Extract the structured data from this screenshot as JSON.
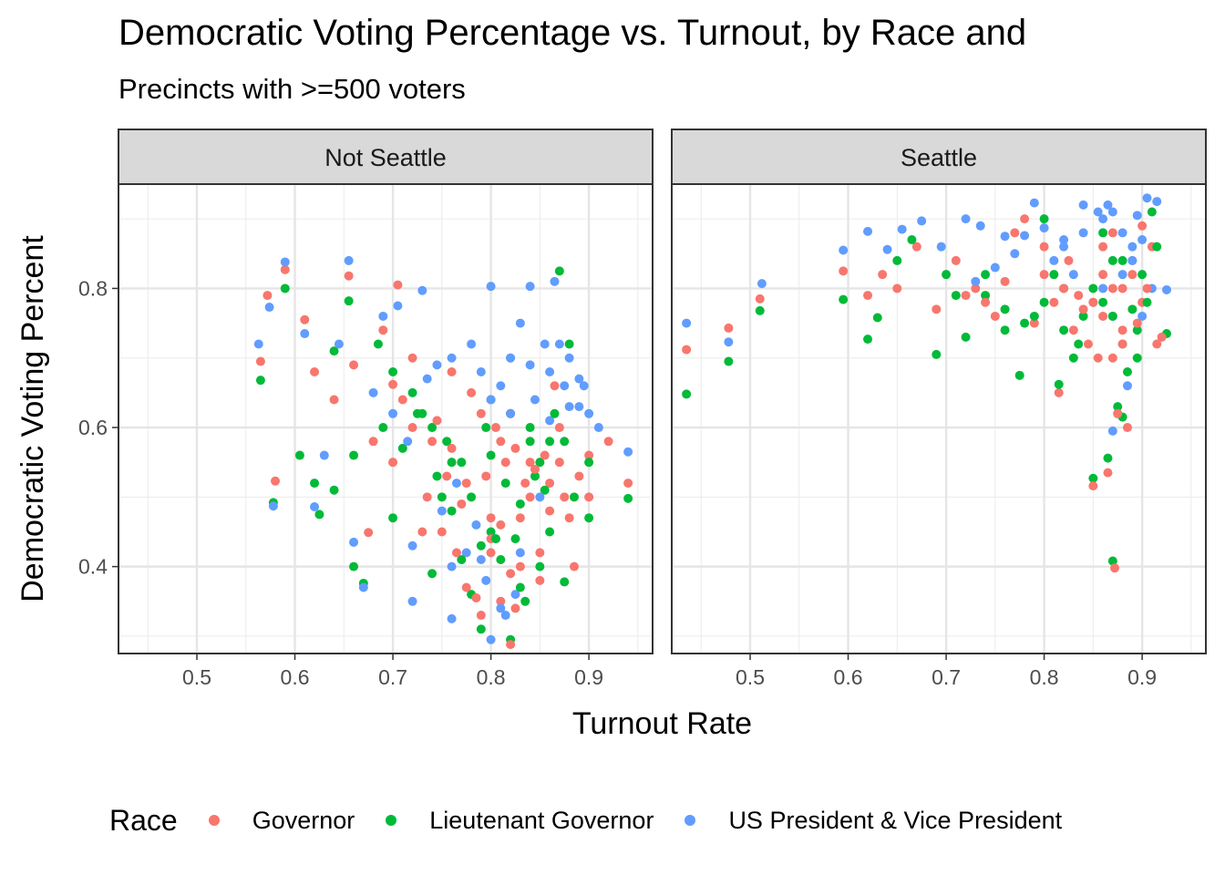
{
  "chart_data": {
    "type": "scatter",
    "title": "Democratic Voting Percentage vs. Turnout, by Race and",
    "subtitle": "Precincts with >=500 voters",
    "xlabel": "Turnout Rate",
    "ylabel": "Democratic Voting Percent",
    "xlim": [
      0.42,
      0.965
    ],
    "ylim": [
      0.275,
      0.95
    ],
    "x_ticks": [
      0.5,
      0.6,
      0.7,
      0.8,
      0.9
    ],
    "x_tick_labels": [
      "0.5",
      "0.6",
      "0.7",
      "0.8",
      "0.9"
    ],
    "y_ticks": [
      0.4,
      0.6,
      0.8
    ],
    "y_tick_labels": [
      "0.4",
      "0.6",
      "0.8"
    ],
    "grid": true,
    "legend_title": "Race",
    "legend_position": "bottom",
    "colors": {
      "Governor": "#F8766D",
      "Lieutenant Governor": "#00BA38",
      "US President & Vice President": "#619CFF"
    },
    "facets": [
      {
        "label": "Not Seattle",
        "series": [
          {
            "name": "Governor",
            "x": [
              0.565,
              0.572,
              0.58,
              0.59,
              0.61,
              0.62,
              0.64,
              0.655,
              0.66,
              0.675,
              0.69,
              0.7,
              0.705,
              0.72,
              0.74,
              0.755,
              0.77,
              0.785,
              0.79,
              0.8,
              0.81,
              0.82,
              0.83,
              0.84,
              0.85,
              0.86,
              0.87,
              0.885,
              0.9,
              0.92,
              0.94,
              0.72,
              0.76,
              0.78,
              0.79,
              0.81,
              0.82,
              0.84,
              0.86,
              0.88,
              0.75,
              0.8,
              0.83,
              0.85,
              0.87,
              0.9,
              0.7,
              0.735,
              0.76,
              0.775,
              0.805,
              0.815,
              0.835,
              0.855,
              0.875,
              0.71,
              0.745,
              0.795,
              0.825,
              0.845,
              0.865,
              0.89,
              0.68,
              0.73,
              0.765,
              0.8,
              0.82,
              0.775,
              0.81,
              0.825
            ],
            "y": [
              0.695,
              0.79,
              0.523,
              0.827,
              0.755,
              0.68,
              0.64,
              0.818,
              0.69,
              0.449,
              0.74,
              0.662,
              0.805,
              0.6,
              0.58,
              0.53,
              0.49,
              0.355,
              0.33,
              0.42,
              0.35,
              0.288,
              0.47,
              0.55,
              0.42,
              0.52,
              0.55,
              0.4,
              0.56,
              0.58,
              0.52,
              0.7,
              0.68,
              0.65,
              0.62,
              0.58,
              0.62,
              0.5,
              0.48,
              0.47,
              0.45,
              0.44,
              0.4,
              0.38,
              0.6,
              0.5,
              0.55,
              0.5,
              0.57,
              0.52,
              0.6,
              0.55,
              0.52,
              0.56,
              0.5,
              0.64,
              0.61,
              0.53,
              0.57,
              0.54,
              0.66,
              0.53,
              0.58,
              0.45,
              0.42,
              0.47,
              0.39,
              0.37,
              0.46,
              0.34
            ]
          },
          {
            "name": "Lieutenant Governor",
            "x": [
              0.565,
              0.578,
              0.59,
              0.605,
              0.62,
              0.625,
              0.64,
              0.655,
              0.66,
              0.67,
              0.685,
              0.7,
              0.72,
              0.74,
              0.76,
              0.78,
              0.79,
              0.8,
              0.82,
              0.835,
              0.85,
              0.87,
              0.875,
              0.9,
              0.94,
              0.73,
              0.755,
              0.78,
              0.8,
              0.82,
              0.84,
              0.86,
              0.88,
              0.9,
              0.71,
              0.745,
              0.77,
              0.795,
              0.815,
              0.83,
              0.855,
              0.875,
              0.69,
              0.725,
              0.76,
              0.8,
              0.825,
              0.845,
              0.865,
              0.885,
              0.7,
              0.75,
              0.79,
              0.81,
              0.84,
              0.86,
              0.74,
              0.77,
              0.805,
              0.83,
              0.85,
              0.64,
              0.66
            ],
            "y": [
              0.668,
              0.492,
              0.8,
              0.56,
              0.52,
              0.475,
              0.71,
              0.782,
              0.4,
              0.376,
              0.72,
              0.68,
              0.65,
              0.6,
              0.55,
              0.36,
              0.31,
              0.45,
              0.295,
              0.35,
              0.55,
              0.825,
              0.378,
              0.47,
              0.498,
              0.62,
              0.58,
              0.5,
              0.64,
              0.62,
              0.6,
              0.58,
              0.72,
              0.55,
              0.57,
              0.53,
              0.55,
              0.6,
              0.52,
              0.49,
              0.51,
              0.58,
              0.6,
              0.62,
              0.48,
              0.56,
              0.44,
              0.53,
              0.62,
              0.5,
              0.47,
              0.5,
              0.43,
              0.41,
              0.58,
              0.45,
              0.39,
              0.41,
              0.44,
              0.37,
              0.4,
              0.51,
              0.56
            ]
          },
          {
            "name": "US President & Vice President",
            "x": [
              0.563,
              0.574,
              0.578,
              0.59,
              0.61,
              0.62,
              0.63,
              0.645,
              0.655,
              0.66,
              0.67,
              0.69,
              0.705,
              0.72,
              0.73,
              0.745,
              0.76,
              0.775,
              0.8,
              0.82,
              0.83,
              0.84,
              0.855,
              0.865,
              0.88,
              0.895,
              0.91,
              0.94,
              0.735,
              0.76,
              0.78,
              0.79,
              0.81,
              0.82,
              0.84,
              0.86,
              0.87,
              0.88,
              0.89,
              0.8,
              0.82,
              0.845,
              0.86,
              0.875,
              0.89,
              0.9,
              0.75,
              0.765,
              0.785,
              0.805,
              0.83,
              0.85,
              0.68,
              0.7,
              0.715,
              0.795,
              0.81,
              0.825,
              0.72,
              0.76,
              0.79,
              0.8,
              0.815
            ],
            "y": [
              0.72,
              0.773,
              0.487,
              0.838,
              0.735,
              0.486,
              0.56,
              0.72,
              0.84,
              0.435,
              0.37,
              0.76,
              0.775,
              0.35,
              0.797,
              0.69,
              0.325,
              0.42,
              0.803,
              0.7,
              0.75,
              0.803,
              0.72,
              0.81,
              0.63,
              0.66,
              0.6,
              0.565,
              0.67,
              0.7,
              0.72,
              0.68,
              0.66,
              0.7,
              0.69,
              0.68,
              0.72,
              0.7,
              0.67,
              0.64,
              0.62,
              0.64,
              0.61,
              0.66,
              0.63,
              0.62,
              0.48,
              0.52,
              0.46,
              0.44,
              0.42,
              0.5,
              0.65,
              0.62,
              0.58,
              0.38,
              0.34,
              0.36,
              0.43,
              0.4,
              0.41,
              0.295,
              0.33
            ]
          }
        ]
      },
      {
        "label": "Seattle",
        "series": [
          {
            "name": "Governor",
            "x": [
              0.435,
              0.478,
              0.51,
              0.595,
              0.62,
              0.635,
              0.65,
              0.67,
              0.69,
              0.71,
              0.73,
              0.75,
              0.77,
              0.78,
              0.79,
              0.8,
              0.815,
              0.825,
              0.835,
              0.845,
              0.85,
              0.855,
              0.86,
              0.865,
              0.87,
              0.872,
              0.875,
              0.88,
              0.885,
              0.89,
              0.9,
              0.91,
              0.92,
              0.86,
              0.87,
              0.88,
              0.89,
              0.9,
              0.84,
              0.8,
              0.81,
              0.82,
              0.83,
              0.85,
              0.86,
              0.87,
              0.88,
              0.895,
              0.905,
              0.915,
              0.76,
              0.72,
              0.74
            ],
            "y": [
              0.712,
              0.743,
              0.785,
              0.825,
              0.79,
              0.82,
              0.8,
              0.86,
              0.77,
              0.84,
              0.8,
              0.76,
              0.88,
              0.9,
              0.75,
              0.86,
              0.65,
              0.84,
              0.79,
              0.72,
              0.516,
              0.7,
              0.82,
              0.535,
              0.88,
              0.398,
              0.62,
              0.74,
              0.6,
              0.82,
              0.78,
              0.86,
              0.73,
              0.76,
              0.7,
              0.8,
              0.84,
              0.89,
              0.77,
              0.82,
              0.78,
              0.8,
              0.74,
              0.78,
              0.86,
              0.8,
              0.72,
              0.75,
              0.8,
              0.72,
              0.81,
              0.79,
              0.78
            ]
          },
          {
            "name": "Lieutenant Governor",
            "x": [
              0.435,
              0.478,
              0.51,
              0.595,
              0.62,
              0.63,
              0.65,
              0.665,
              0.69,
              0.7,
              0.72,
              0.74,
              0.76,
              0.775,
              0.79,
              0.8,
              0.815,
              0.82,
              0.835,
              0.85,
              0.865,
              0.87,
              0.875,
              0.88,
              0.885,
              0.895,
              0.91,
              0.925,
              0.86,
              0.87,
              0.88,
              0.89,
              0.9,
              0.84,
              0.8,
              0.81,
              0.82,
              0.83,
              0.85,
              0.86,
              0.87,
              0.88,
              0.895,
              0.905,
              0.915,
              0.76,
              0.74,
              0.71,
              0.78
            ],
            "y": [
              0.648,
              0.695,
              0.768,
              0.784,
              0.727,
              0.758,
              0.84,
              0.87,
              0.705,
              0.82,
              0.73,
              0.79,
              0.77,
              0.675,
              0.76,
              0.9,
              0.662,
              0.8,
              0.72,
              0.527,
              0.556,
              0.408,
              0.63,
              0.615,
              0.68,
              0.74,
              0.91,
              0.735,
              0.78,
              0.84,
              0.72,
              0.77,
              0.82,
              0.76,
              0.78,
              0.82,
              0.74,
              0.7,
              0.8,
              0.88,
              0.76,
              0.84,
              0.7,
              0.78,
              0.86,
              0.74,
              0.82,
              0.79,
              0.75
            ]
          },
          {
            "name": "US President & Vice President",
            "x": [
              0.435,
              0.478,
              0.512,
              0.595,
              0.62,
              0.64,
              0.655,
              0.675,
              0.695,
              0.72,
              0.735,
              0.76,
              0.78,
              0.79,
              0.8,
              0.82,
              0.84,
              0.855,
              0.865,
              0.87,
              0.875,
              0.885,
              0.895,
              0.905,
              0.915,
              0.925,
              0.86,
              0.87,
              0.88,
              0.89,
              0.9,
              0.84,
              0.81,
              0.82,
              0.83,
              0.85,
              0.86,
              0.87,
              0.88,
              0.89,
              0.9,
              0.91,
              0.77,
              0.75,
              0.73
            ],
            "y": [
              0.75,
              0.723,
              0.807,
              0.855,
              0.882,
              0.856,
              0.885,
              0.897,
              0.86,
              0.9,
              0.89,
              0.875,
              0.876,
              0.923,
              0.887,
              0.87,
              0.92,
              0.91,
              0.92,
              0.595,
              0.62,
              0.66,
              0.905,
              0.93,
              0.925,
              0.798,
              0.9,
              0.91,
              0.88,
              0.86,
              0.87,
              0.88,
              0.84,
              0.86,
              0.82,
              0.78,
              0.8,
              0.76,
              0.82,
              0.84,
              0.76,
              0.8,
              0.85,
              0.83,
              0.81
            ]
          }
        ]
      }
    ]
  }
}
